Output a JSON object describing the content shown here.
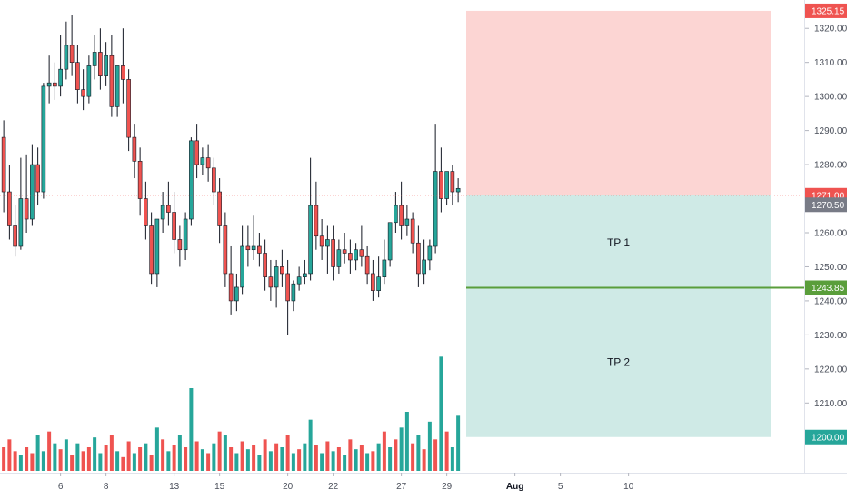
{
  "chart_data": {
    "type": "candlestick",
    "y_axis": {
      "range": [
        1197,
        1327
      ],
      "ticks": [
        1200,
        1210,
        1220,
        1230,
        1240,
        1250,
        1260,
        1270,
        1280,
        1290,
        1300,
        1310,
        1320
      ],
      "tick_labels": [
        "1200.00",
        "1210.00",
        "1220.00",
        "1230.00",
        "1240.00",
        "1250.00",
        "1260.00",
        "1270.00",
        "1280.00",
        "1290.00",
        "1300.00",
        "1310.00",
        "1320.00"
      ]
    },
    "x_axis": {
      "ticks": [
        {
          "label": "6",
          "bar": 10,
          "bold": false
        },
        {
          "label": "8",
          "bar": 18,
          "bold": false
        },
        {
          "label": "13",
          "bar": 30,
          "bold": false
        },
        {
          "label": "15",
          "bar": 38,
          "bold": false
        },
        {
          "label": "20",
          "bar": 50,
          "bold": false
        },
        {
          "label": "22",
          "bar": 58,
          "bold": false
        },
        {
          "label": "27",
          "bar": 70,
          "bold": false
        },
        {
          "label": "29",
          "bar": 78,
          "bold": false
        },
        {
          "label": "Aug",
          "bar": 90,
          "bold": true
        },
        {
          "label": "5",
          "bar": 98,
          "bold": false
        },
        {
          "label": "10",
          "bar": 110,
          "bold": false
        }
      ]
    },
    "candles": [
      [
        1288,
        1293,
        1272,
        1266
      ],
      [
        1272,
        1280,
        1262,
        1258
      ],
      [
        1262,
        1268,
        1256,
        1253
      ],
      [
        1256,
        1282,
        1270,
        1255
      ],
      [
        1270,
        1283,
        1264,
        1260
      ],
      [
        1264,
        1286,
        1280,
        1262
      ],
      [
        1280,
        1285,
        1272,
        1268
      ],
      [
        1272,
        1304,
        1303,
        1270
      ],
      [
        1303,
        1312,
        1304,
        1298
      ],
      [
        1304,
        1310,
        1303,
        1299
      ],
      [
        1303,
        1318,
        1308,
        1300
      ],
      [
        1308,
        1322,
        1315,
        1305
      ],
      [
        1315,
        1324,
        1310,
        1306
      ],
      [
        1310,
        1315,
        1302,
        1298
      ],
      [
        1302,
        1308,
        1300,
        1296
      ],
      [
        1300,
        1312,
        1309,
        1298
      ],
      [
        1309,
        1318,
        1313,
        1305
      ],
      [
        1313,
        1320,
        1306,
        1302
      ],
      [
        1306,
        1316,
        1312,
        1303
      ],
      [
        1312,
        1318,
        1297,
        1294
      ],
      [
        1297,
        1306,
        1309,
        1294
      ],
      [
        1309,
        1320,
        1305,
        1298
      ],
      [
        1305,
        1308,
        1288,
        1284
      ],
      [
        1288,
        1292,
        1281,
        1276
      ],
      [
        1281,
        1285,
        1270,
        1265
      ],
      [
        1270,
        1275,
        1262,
        1258
      ],
      [
        1262,
        1266,
        1248,
        1245
      ],
      [
        1248,
        1262,
        1264,
        1244
      ],
      [
        1264,
        1272,
        1268,
        1260
      ],
      [
        1268,
        1275,
        1266,
        1262
      ],
      [
        1266,
        1272,
        1258,
        1254
      ],
      [
        1258,
        1262,
        1255,
        1250
      ],
      [
        1255,
        1266,
        1264,
        1252
      ],
      [
        1264,
        1288,
        1287,
        1262
      ],
      [
        1287,
        1292,
        1280,
        1276
      ],
      [
        1280,
        1285,
        1282,
        1277
      ],
      [
        1282,
        1286,
        1279,
        1275
      ],
      [
        1279,
        1282,
        1272,
        1268
      ],
      [
        1272,
        1276,
        1262,
        1257
      ],
      [
        1262,
        1266,
        1248,
        1244
      ],
      [
        1248,
        1256,
        1240,
        1236
      ],
      [
        1240,
        1248,
        1244,
        1237
      ],
      [
        1244,
        1262,
        1256,
        1242
      ],
      [
        1256,
        1262,
        1255,
        1250
      ],
      [
        1255,
        1265,
        1256,
        1252
      ],
      [
        1256,
        1260,
        1254,
        1250
      ],
      [
        1254,
        1258,
        1247,
        1243
      ],
      [
        1247,
        1252,
        1244,
        1240
      ],
      [
        1244,
        1252,
        1250,
        1238
      ],
      [
        1250,
        1255,
        1248,
        1244
      ],
      [
        1248,
        1252,
        1240,
        1230
      ],
      [
        1240,
        1246,
        1245,
        1237
      ],
      [
        1245,
        1250,
        1247,
        1243
      ],
      [
        1247,
        1252,
        1248,
        1245
      ],
      [
        1248,
        1282,
        1268,
        1246
      ],
      [
        1268,
        1275,
        1259,
        1255
      ],
      [
        1259,
        1264,
        1256,
        1252
      ],
      [
        1256,
        1262,
        1258,
        1248
      ],
      [
        1258,
        1262,
        1250,
        1246
      ],
      [
        1250,
        1258,
        1255,
        1248
      ],
      [
        1255,
        1260,
        1254,
        1251
      ],
      [
        1254,
        1258,
        1252,
        1248
      ],
      [
        1252,
        1257,
        1255,
        1249
      ],
      [
        1255,
        1262,
        1253,
        1250
      ],
      [
        1253,
        1256,
        1248,
        1245
      ],
      [
        1248,
        1252,
        1243,
        1240
      ],
      [
        1243,
        1253,
        1247,
        1241
      ],
      [
        1247,
        1258,
        1252,
        1245
      ],
      [
        1252,
        1262,
        1263,
        1250
      ],
      [
        1263,
        1272,
        1268,
        1260
      ],
      [
        1268,
        1275,
        1262,
        1258
      ],
      [
        1262,
        1268,
        1264,
        1259
      ],
      [
        1264,
        1266,
        1257,
        1254
      ],
      [
        1257,
        1262,
        1248,
        1244
      ],
      [
        1248,
        1258,
        1252,
        1245
      ],
      [
        1252,
        1258,
        1256,
        1249
      ],
      [
        1256,
        1292,
        1278,
        1254
      ],
      [
        1278,
        1285,
        1270,
        1266
      ],
      [
        1270,
        1275,
        1278,
        1268
      ],
      [
        1278,
        1280,
        1272,
        1268
      ],
      [
        1272,
        1276,
        1273,
        1269
      ]
    ],
    "volume_range": [
      0,
      60
    ],
    "volumes": [
      [
        12,
        0
      ],
      [
        16,
        0
      ],
      [
        10,
        0
      ],
      [
        8,
        1
      ],
      [
        12,
        0
      ],
      [
        9,
        0
      ],
      [
        18,
        1
      ],
      [
        10,
        1
      ],
      [
        20,
        0
      ],
      [
        14,
        1
      ],
      [
        11,
        0
      ],
      [
        16,
        1
      ],
      [
        8,
        0
      ],
      [
        14,
        1
      ],
      [
        10,
        0
      ],
      [
        12,
        0
      ],
      [
        17,
        1
      ],
      [
        9,
        1
      ],
      [
        13,
        0
      ],
      [
        18,
        0
      ],
      [
        10,
        1
      ],
      [
        7,
        0
      ],
      [
        15,
        0
      ],
      [
        9,
        1
      ],
      [
        12,
        0
      ],
      [
        14,
        1
      ],
      [
        8,
        0
      ],
      [
        22,
        1
      ],
      [
        16,
        0
      ],
      [
        10,
        1
      ],
      [
        13,
        0
      ],
      [
        18,
        1
      ],
      [
        12,
        0
      ],
      [
        42,
        1
      ],
      [
        15,
        0
      ],
      [
        11,
        1
      ],
      [
        9,
        0
      ],
      [
        14,
        1
      ],
      [
        20,
        0
      ],
      [
        18,
        1
      ],
      [
        12,
        0
      ],
      [
        9,
        1
      ],
      [
        15,
        0
      ],
      [
        11,
        1
      ],
      [
        13,
        0
      ],
      [
        8,
        1
      ],
      [
        16,
        0
      ],
      [
        10,
        1
      ],
      [
        14,
        0
      ],
      [
        12,
        1
      ],
      [
        18,
        0
      ],
      [
        9,
        1
      ],
      [
        11,
        0
      ],
      [
        14,
        1
      ],
      [
        26,
        1
      ],
      [
        13,
        0
      ],
      [
        9,
        1
      ],
      [
        15,
        0
      ],
      [
        10,
        1
      ],
      [
        12,
        0
      ],
      [
        8,
        1
      ],
      [
        16,
        0
      ],
      [
        11,
        1
      ],
      [
        13,
        0
      ],
      [
        9,
        1
      ],
      [
        10,
        0
      ],
      [
        14,
        1
      ],
      [
        20,
        0
      ],
      [
        12,
        1
      ],
      [
        16,
        0
      ],
      [
        22,
        1
      ],
      [
        30,
        1
      ],
      [
        14,
        0
      ],
      [
        18,
        1
      ],
      [
        11,
        0
      ],
      [
        25,
        1
      ],
      [
        16,
        0
      ],
      [
        58,
        1
      ],
      [
        20,
        0
      ],
      [
        12,
        1
      ],
      [
        28,
        1
      ]
    ],
    "positions": {
      "stop_zone": {
        "from": 1271,
        "to": 1325.15
      },
      "target_zone": {
        "from": 1200,
        "to": 1271
      },
      "target_line": 1243.85,
      "current_price_line": 1271
    },
    "annotations": [
      {
        "text": "TP 1",
        "price": 1257
      },
      {
        "text": "TP 2",
        "price": 1222
      }
    ],
    "price_badges": [
      {
        "label": "1325.15",
        "price": 1325.15,
        "color": "#ef5350"
      },
      {
        "label": "1271.00",
        "price": 1271,
        "color": "#ef5350"
      },
      {
        "label": "1270.50",
        "price": 1268.2,
        "color": "#787b86"
      },
      {
        "label": "1243.85",
        "price": 1243.85,
        "color": "#5a9e3b"
      },
      {
        "label": "1200.00",
        "price": 1200,
        "color": "#26a69a"
      }
    ],
    "colors": {
      "up": "#26a69a",
      "down": "#ef5350",
      "candle_up": "#26a69a",
      "candle_down": "#ef5350",
      "stop_fill": "#fcd5d3",
      "target_fill": "#cfeae6",
      "target_line": "#5a9e3b",
      "price_line": "#ef5350",
      "volume_up": "#26a69a",
      "volume_down": "#ef5350"
    },
    "grid": false
  }
}
